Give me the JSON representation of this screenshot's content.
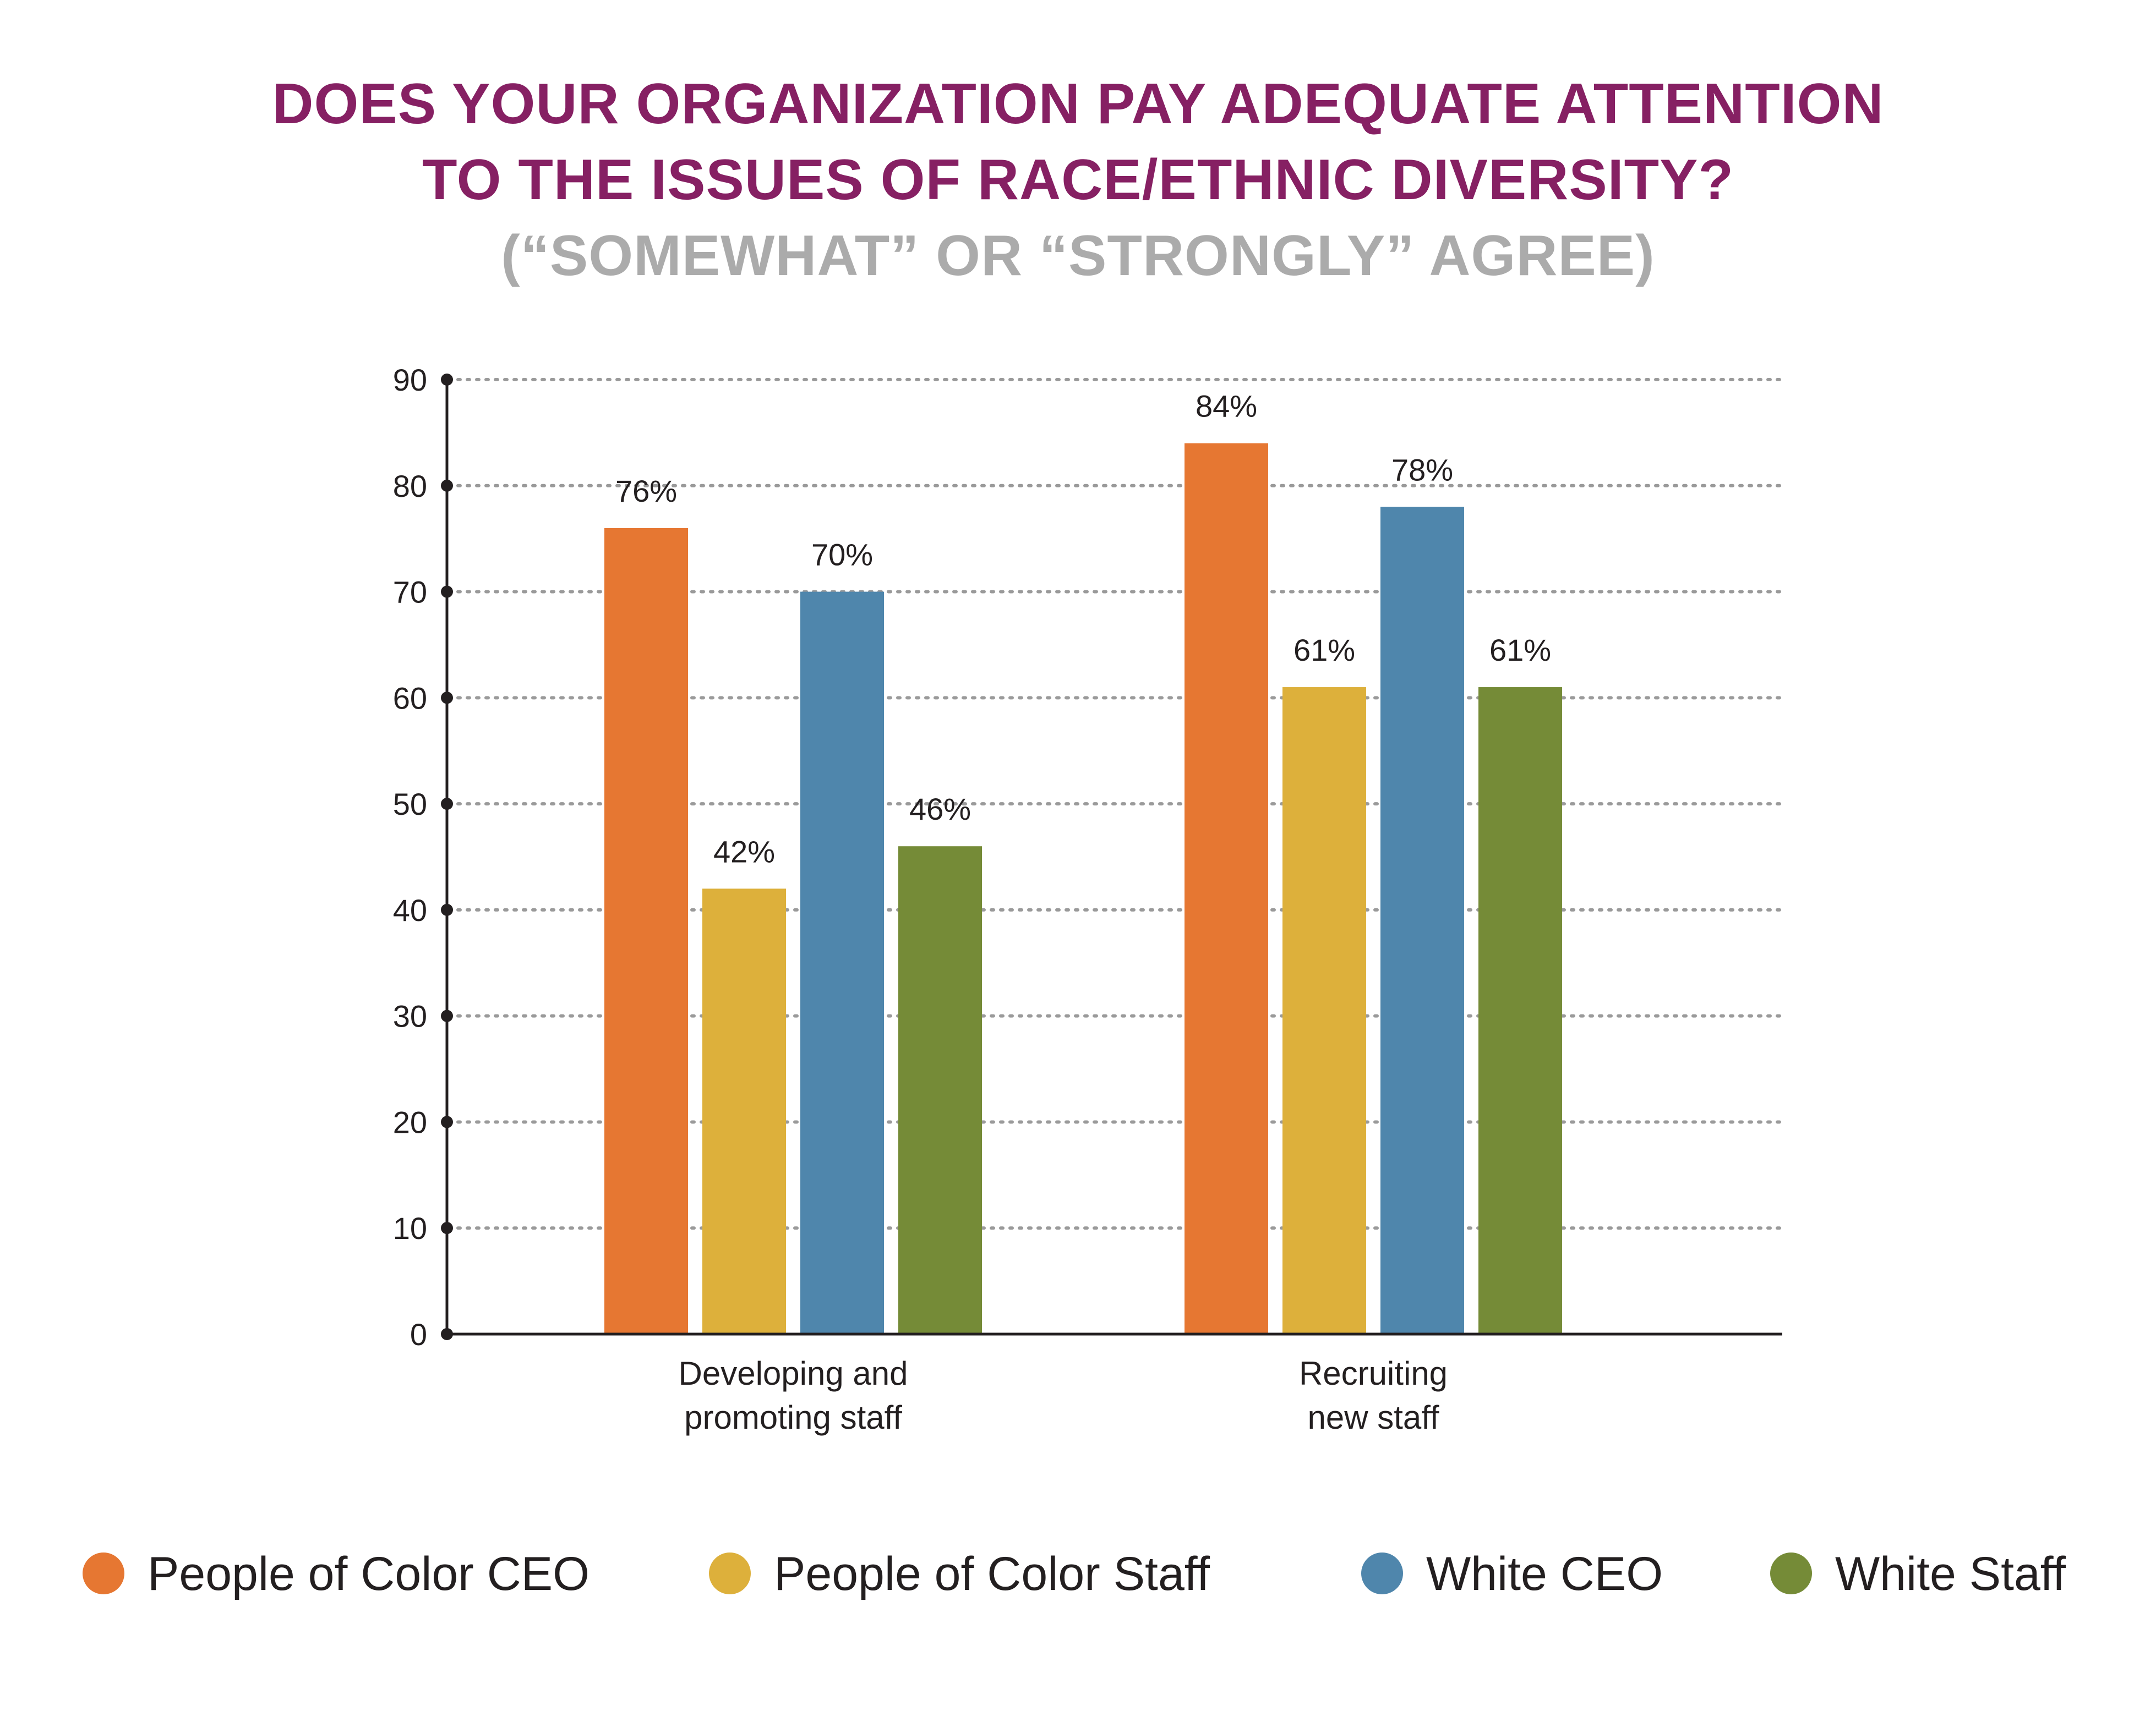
{
  "chart_data": {
    "type": "bar",
    "title_lines": [
      "DOES YOUR ORGANIZATION PAY ADEQUATE ATTENTION",
      "TO THE ISSUES OF RACE/ETHNIC DIVERSITY?"
    ],
    "subtitle": "(“SOMEWHAT” OR “STRONGLY” AGREE)",
    "categories": [
      [
        "Developing and",
        "promoting staff"
      ],
      [
        "Recruiting",
        "new staff"
      ]
    ],
    "series": [
      {
        "name": "People of Color CEO",
        "color": "#e67732",
        "values": [
          76,
          84
        ],
        "labels": [
          "76%",
          "84%"
        ]
      },
      {
        "name": "People of Color Staff",
        "color": "#ddb03b",
        "values": [
          42,
          61
        ],
        "labels": [
          "42%",
          "61%"
        ]
      },
      {
        "name": "White CEO",
        "color": "#4f86ac",
        "values": [
          70,
          78
        ],
        "labels": [
          "70%",
          "78%"
        ]
      },
      {
        "name": "White Staff",
        "color": "#758b37",
        "values": [
          46,
          61
        ],
        "labels": [
          "46%",
          "61%"
        ]
      }
    ],
    "y_ticks": [
      "0",
      "10",
      "20",
      "30",
      "40",
      "50",
      "60",
      "70",
      "80",
      "90"
    ],
    "ylim": [
      0,
      90
    ],
    "grid": true,
    "legend_position": "bottom"
  }
}
